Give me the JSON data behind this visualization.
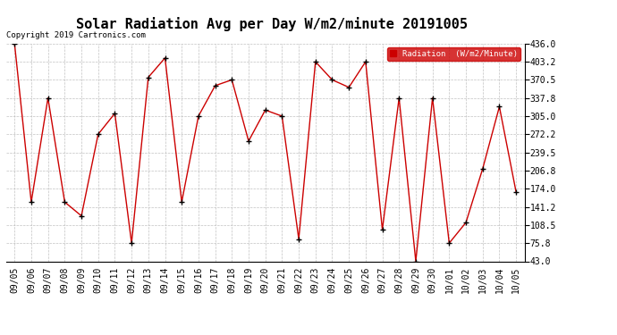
{
  "title": "Solar Radiation Avg per Day W/m2/minute 20191005",
  "copyright_text": "Copyright 2019 Cartronics.com",
  "legend_label": "Radiation  (W/m2/Minute)",
  "legend_bg": "#cc0000",
  "legend_text_color": "#ffffff",
  "dates": [
    "09/05",
    "09/06",
    "09/07",
    "09/08",
    "09/09",
    "09/10",
    "09/11",
    "09/12",
    "09/13",
    "09/14",
    "09/15",
    "09/16",
    "09/17",
    "09/18",
    "09/19",
    "09/20",
    "09/21",
    "09/22",
    "09/23",
    "09/24",
    "09/25",
    "09/26",
    "09/27",
    "09/28",
    "09/29",
    "09/30",
    "10/01",
    "10/02",
    "10/03",
    "10/04",
    "10/05"
  ],
  "values": [
    436.0,
    150.0,
    337.8,
    150.0,
    125.0,
    272.2,
    310.0,
    75.8,
    375.0,
    410.0,
    150.0,
    305.0,
    360.0,
    370.5,
    260.0,
    316.0,
    305.0,
    83.0,
    403.2,
    370.5,
    357.0,
    403.2,
    100.0,
    337.8,
    43.0,
    337.8,
    75.8,
    113.0,
    210.0,
    322.0,
    168.0
  ],
  "line_color": "#cc0000",
  "marker_color": "#000000",
  "bg_color": "#ffffff",
  "plot_bg_color": "#ffffff",
  "grid_color": "#bbbbbb",
  "ylim": [
    43.0,
    436.0
  ],
  "yticks": [
    43.0,
    75.8,
    108.5,
    141.2,
    174.0,
    206.8,
    239.5,
    272.2,
    305.0,
    337.8,
    370.5,
    403.2,
    436.0
  ],
  "title_fontsize": 11,
  "tick_fontsize": 7,
  "copyright_fontsize": 6.5
}
